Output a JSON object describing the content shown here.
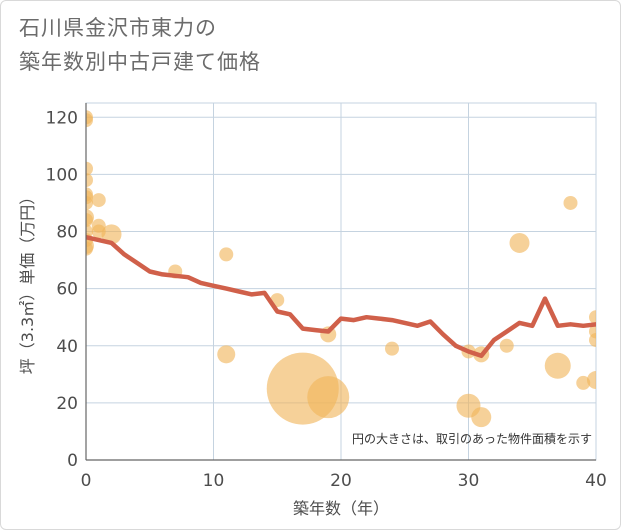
{
  "title_line1": "石川県金沢市東力の",
  "title_line2": "築年数別中古戸建て価格",
  "chart_data": {
    "type": "scatter",
    "title": "石川県金沢市東力の築年数別中古戸建て価格",
    "xlabel": "築年数（年）",
    "ylabel": "坪（3.3㎡）単価（万円）",
    "xlim": [
      0,
      40
    ],
    "ylim": [
      0,
      125
    ],
    "xticks": [
      0,
      10,
      20,
      30,
      40
    ],
    "yticks": [
      0,
      20,
      40,
      60,
      80,
      100,
      120
    ],
    "grid": true,
    "note": "円の大きさは、取引のあった物件面積を示す",
    "colors": {
      "bubble": "#f0b45a",
      "line": "#d0604a",
      "grid": "#c5d3e0"
    },
    "bubbles": [
      {
        "x": 0,
        "y": 120,
        "size": 7
      },
      {
        "x": 0,
        "y": 119,
        "size": 7
      },
      {
        "x": 0,
        "y": 102,
        "size": 7
      },
      {
        "x": 0,
        "y": 98,
        "size": 7
      },
      {
        "x": 0,
        "y": 93,
        "size": 7
      },
      {
        "x": 0,
        "y": 92,
        "size": 7
      },
      {
        "x": 0,
        "y": 90,
        "size": 7
      },
      {
        "x": 0,
        "y": 85,
        "size": 8
      },
      {
        "x": 0,
        "y": 84,
        "size": 7
      },
      {
        "x": 0,
        "y": 80,
        "size": 7
      },
      {
        "x": 0,
        "y": 77,
        "size": 7
      },
      {
        "x": 0,
        "y": 75,
        "size": 8
      },
      {
        "x": 0,
        "y": 74,
        "size": 7
      },
      {
        "x": 1,
        "y": 91,
        "size": 7
      },
      {
        "x": 1,
        "y": 82,
        "size": 7
      },
      {
        "x": 1,
        "y": 80,
        "size": 7
      },
      {
        "x": 2,
        "y": 79,
        "size": 10
      },
      {
        "x": 7,
        "y": 66,
        "size": 7
      },
      {
        "x": 11,
        "y": 72,
        "size": 7
      },
      {
        "x": 11,
        "y": 37,
        "size": 9
      },
      {
        "x": 15,
        "y": 56,
        "size": 7
      },
      {
        "x": 17,
        "y": 25,
        "size": 36
      },
      {
        "x": 19,
        "y": 22,
        "size": 21
      },
      {
        "x": 19,
        "y": 44,
        "size": 8
      },
      {
        "x": 24,
        "y": 39,
        "size": 7
      },
      {
        "x": 30,
        "y": 38,
        "size": 7
      },
      {
        "x": 30,
        "y": 19,
        "size": 12
      },
      {
        "x": 31,
        "y": 37,
        "size": 8
      },
      {
        "x": 31,
        "y": 15,
        "size": 10
      },
      {
        "x": 33,
        "y": 40,
        "size": 7
      },
      {
        "x": 34,
        "y": 76,
        "size": 10
      },
      {
        "x": 37,
        "y": 33,
        "size": 13
      },
      {
        "x": 38,
        "y": 90,
        "size": 7
      },
      {
        "x": 39,
        "y": 27,
        "size": 7
      },
      {
        "x": 40,
        "y": 28,
        "size": 9
      },
      {
        "x": 40,
        "y": 42,
        "size": 7
      },
      {
        "x": 40,
        "y": 45,
        "size": 7
      },
      {
        "x": 40,
        "y": 50,
        "size": 7
      }
    ],
    "trend_line": {
      "x": [
        0,
        1,
        2,
        3,
        4,
        5,
        6,
        7,
        8,
        9,
        10,
        11,
        12,
        13,
        14,
        15,
        16,
        17,
        18,
        19,
        20,
        21,
        22,
        23,
        24,
        25,
        26,
        27,
        28,
        29,
        30,
        31,
        32,
        33,
        34,
        35,
        36,
        37,
        38,
        39,
        40
      ],
      "y": [
        78,
        77,
        76,
        72,
        69,
        66,
        65,
        64.5,
        64,
        62,
        61,
        60,
        59,
        58,
        58.5,
        52,
        51,
        46,
        45.5,
        45,
        49.5,
        49,
        50,
        49.5,
        49,
        48,
        47,
        48.5,
        44,
        40,
        38,
        36.5,
        42,
        45,
        48,
        47,
        56.5,
        47,
        47.5,
        47,
        47.5
      ]
    }
  }
}
